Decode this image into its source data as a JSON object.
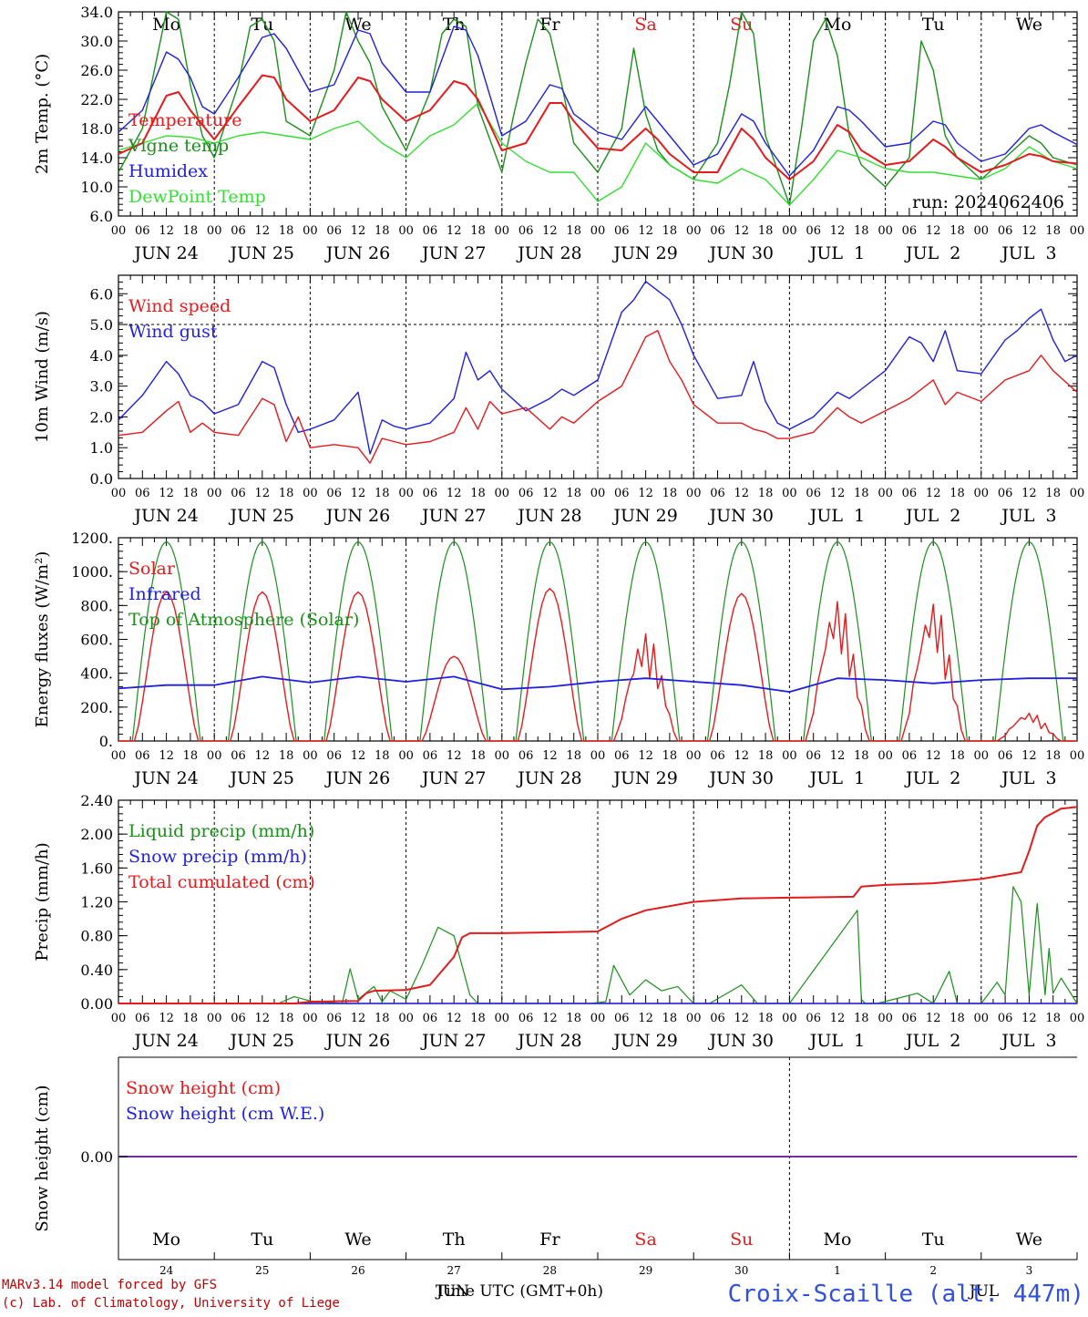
{
  "colors": {
    "red": "#e41a1c",
    "green": "#1a8f1a",
    "blue": "#1f1fe0",
    "lightgreen": "#33dd33",
    "weekend": "#e41a1c",
    "axis": "#000000",
    "purple": "#7030a0"
  },
  "weekdays": [
    {
      "label": "Mo",
      "weekend": false
    },
    {
      "label": "Tu",
      "weekend": false
    },
    {
      "label": "We",
      "weekend": false
    },
    {
      "label": "Th",
      "weekend": false
    },
    {
      "label": "Fr",
      "weekend": false
    },
    {
      "label": "Sa",
      "weekend": true
    },
    {
      "label": "Su",
      "weekend": true
    },
    {
      "label": "Mo",
      "weekend": false
    },
    {
      "label": "Tu",
      "weekend": false
    },
    {
      "label": "We",
      "weekend": false
    }
  ],
  "day_labels": [
    "JUN 24",
    "JUN 25",
    "JUN 26",
    "JUN 27",
    "JUN 28",
    "JUN 29",
    "JUN 30",
    "JUL  1",
    "JUL  2",
    "JUL  3"
  ],
  "hour_labels": [
    "00",
    "06",
    "12",
    "18"
  ],
  "day_numbers": [
    "24",
    "25",
    "26",
    "27",
    "28",
    "29",
    "30",
    "1",
    "2",
    "3"
  ],
  "bottom_month_labels": [
    "JUN",
    "JUL"
  ],
  "xlabel": "Time UTC (GMT+0h)",
  "footer": {
    "line1": "MARv3.14 model forced by GFS",
    "line2": "(c) Lab. of Climatology, University of Liege",
    "station": "Croix-Scaille (alt. 447m)"
  },
  "chart_data": [
    {
      "type": "line",
      "ylabel": "2m Temp. (°C)",
      "ylim": [
        6,
        34
      ],
      "yticks": [
        "6.0",
        "10.0",
        "14.0",
        "18.0",
        "22.0",
        "26.0",
        "30.0",
        "34.0"
      ],
      "run_label": "run: 2024062406",
      "x_unit": "hours since JUN 24 00 UTC",
      "series": [
        {
          "name": "Temperature",
          "color": "red",
          "x": [
            0,
            6,
            12,
            15,
            18,
            24,
            30,
            36,
            39,
            42,
            48,
            54,
            60,
            63,
            66,
            72,
            78,
            84,
            87,
            90,
            96,
            102,
            108,
            111,
            114,
            120,
            126,
            132,
            135,
            138,
            144,
            150,
            156,
            159,
            162,
            168,
            174,
            180,
            183,
            186,
            192,
            198,
            204,
            207,
            210,
            216,
            222,
            228,
            231,
            234,
            240
          ],
          "y": [
            14.5,
            16,
            22.5,
            23,
            20.5,
            16.5,
            21,
            25.3,
            25,
            22,
            19,
            20.5,
            25,
            24.5,
            22,
            19,
            20.5,
            24.5,
            24,
            22,
            15,
            16,
            21.5,
            21.5,
            19,
            15.3,
            15,
            18,
            16.5,
            14.5,
            12,
            12,
            18,
            16.5,
            14,
            11,
            13.5,
            18.5,
            17.5,
            15,
            13,
            13.5,
            16.5,
            15.5,
            14,
            12,
            13,
            14.5,
            14.2,
            13.5,
            13.2
          ]
        },
        {
          "name": "Vigne temp",
          "color": "green",
          "x": [
            0,
            6,
            9,
            12,
            15,
            18,
            21,
            24,
            30,
            33,
            36,
            39,
            42,
            48,
            54,
            57,
            60,
            63,
            66,
            72,
            78,
            81,
            84,
            87,
            90,
            96,
            99,
            102,
            105,
            108,
            111,
            114,
            120,
            126,
            129,
            132,
            135,
            138,
            144,
            150,
            153,
            156,
            159,
            162,
            168,
            171,
            174,
            177,
            180,
            183,
            186,
            192,
            198,
            201,
            204,
            207,
            210,
            216,
            222,
            228,
            231,
            234,
            240
          ],
          "y": [
            12,
            18,
            26,
            34,
            33,
            24,
            17,
            14,
            24,
            32,
            33,
            30,
            19,
            17,
            26,
            34,
            30,
            27,
            21,
            15,
            23,
            31,
            33,
            32,
            21,
            12,
            20,
            27,
            33,
            31,
            24,
            16,
            12,
            18,
            29,
            20,
            15,
            13,
            11,
            16,
            24,
            34,
            31,
            17,
            7.5,
            18,
            30,
            33,
            28,
            17,
            13,
            10,
            14,
            30,
            26,
            17,
            14,
            11,
            14,
            17,
            16,
            14,
            13
          ]
        },
        {
          "name": "Humidex",
          "color": "blue",
          "x": [
            0,
            6,
            12,
            15,
            18,
            21,
            24,
            30,
            36,
            39,
            42,
            48,
            54,
            60,
            63,
            66,
            72,
            78,
            84,
            87,
            90,
            96,
            102,
            108,
            111,
            114,
            120,
            126,
            132,
            135,
            138,
            144,
            150,
            156,
            159,
            162,
            168,
            174,
            180,
            183,
            186,
            192,
            198,
            204,
            207,
            210,
            216,
            222,
            228,
            231,
            234,
            240
          ],
          "y": [
            17.5,
            20.5,
            28.5,
            27.5,
            25,
            21,
            20,
            25,
            30.5,
            31,
            29,
            23,
            24,
            31.5,
            31,
            27,
            23,
            23,
            32,
            31.5,
            28,
            17,
            19,
            24,
            23.5,
            20,
            17.5,
            16.5,
            21,
            19,
            17,
            13,
            14.5,
            20,
            19,
            16,
            11.5,
            15,
            21,
            20.5,
            19,
            15.5,
            16,
            19,
            18.5,
            16,
            13.5,
            14.5,
            18,
            18.5,
            17.5,
            15.8
          ]
        },
        {
          "name": "DewPoint Temp",
          "color": "lightgreen",
          "x": [
            0,
            6,
            12,
            18,
            24,
            30,
            36,
            42,
            48,
            54,
            60,
            66,
            72,
            78,
            84,
            90,
            96,
            102,
            108,
            114,
            120,
            126,
            132,
            138,
            144,
            150,
            156,
            162,
            168,
            174,
            180,
            186,
            192,
            198,
            204,
            210,
            216,
            222,
            228,
            234,
            240
          ],
          "y": [
            15,
            16,
            17,
            16.8,
            16,
            17,
            17.5,
            17,
            16.5,
            18,
            19,
            16,
            14,
            17,
            18.5,
            21.5,
            16,
            13.5,
            12,
            12,
            8,
            10,
            16,
            13,
            11,
            10.5,
            12.5,
            11,
            7.5,
            11,
            15,
            14,
            12.5,
            12,
            12,
            11.5,
            11,
            12.5,
            15.5,
            13.5,
            12.5
          ]
        }
      ]
    },
    {
      "type": "line",
      "ylabel": "10m Wind (m/s)",
      "ylim": [
        0,
        6.6
      ],
      "yticks": [
        "0.0",
        "1.0",
        "2.0",
        "3.0",
        "4.0",
        "5.0",
        "6.0"
      ],
      "reference_line": 5.0,
      "x_unit": "hours since JUN 24 00 UTC",
      "series": [
        {
          "name": "Wind speed",
          "color": "red",
          "x": [
            0,
            6,
            12,
            15,
            18,
            21,
            24,
            30,
            36,
            39,
            42,
            45,
            48,
            54,
            60,
            63,
            66,
            69,
            72,
            78,
            84,
            87,
            90,
            93,
            96,
            102,
            108,
            111,
            114,
            120,
            126,
            132,
            135,
            138,
            141,
            144,
            150,
            156,
            159,
            162,
            165,
            168,
            174,
            180,
            183,
            186,
            192,
            198,
            204,
            207,
            210,
            216,
            222,
            228,
            231,
            234,
            240
          ],
          "y": [
            1.4,
            1.5,
            2.2,
            2.5,
            1.5,
            1.8,
            1.5,
            1.4,
            2.6,
            2.4,
            1.2,
            2.0,
            1.0,
            1.1,
            1.0,
            0.5,
            1.3,
            1.2,
            1.1,
            1.2,
            1.5,
            2.3,
            1.6,
            2.5,
            2.1,
            2.3,
            1.6,
            2.0,
            1.8,
            2.5,
            3.0,
            4.6,
            4.8,
            3.8,
            3.2,
            2.4,
            1.8,
            1.8,
            1.6,
            1.5,
            1.3,
            1.3,
            1.5,
            2.3,
            2.0,
            1.8,
            2.2,
            2.6,
            3.2,
            2.4,
            2.8,
            2.5,
            3.2,
            3.5,
            4.0,
            3.5,
            2.8
          ]
        },
        {
          "name": "Wind gust",
          "color": "blue",
          "x": [
            0,
            6,
            12,
            15,
            18,
            21,
            24,
            30,
            36,
            39,
            42,
            45,
            48,
            54,
            60,
            63,
            66,
            69,
            72,
            78,
            84,
            87,
            90,
            93,
            96,
            102,
            108,
            111,
            114,
            120,
            126,
            129,
            132,
            135,
            138,
            141,
            144,
            150,
            156,
            159,
            162,
            165,
            168,
            174,
            180,
            183,
            186,
            192,
            198,
            201,
            204,
            207,
            210,
            216,
            222,
            225,
            228,
            231,
            234,
            237,
            240
          ],
          "y": [
            1.9,
            2.7,
            3.8,
            3.4,
            2.7,
            2.5,
            2.1,
            2.4,
            3.8,
            3.6,
            2.4,
            1.5,
            1.6,
            1.9,
            2.8,
            0.8,
            1.9,
            1.7,
            1.6,
            1.8,
            2.6,
            4.1,
            3.2,
            3.5,
            2.9,
            2.2,
            2.6,
            2.9,
            2.7,
            3.2,
            5.4,
            5.8,
            6.4,
            6.1,
            5.8,
            5.0,
            4.0,
            2.6,
            2.7,
            3.8,
            2.5,
            1.8,
            1.6,
            2.0,
            2.8,
            2.6,
            2.9,
            3.5,
            4.6,
            4.4,
            3.8,
            4.8,
            3.5,
            3.4,
            4.5,
            4.8,
            5.2,
            5.5,
            4.5,
            3.8,
            4.0
          ]
        }
      ]
    },
    {
      "type": "line",
      "ylabel": "Energy fluxes (W/m²)",
      "ylim": [
        0,
        1200
      ],
      "yticks": [
        "0.",
        "200.",
        "400.",
        "600.",
        "800.",
        "1000.",
        "1200."
      ],
      "x_unit": "hours since JUN 24 00 UTC",
      "series": [
        {
          "name": "Solar",
          "color": "red",
          "clear_sky_peaks": [
            880,
            880,
            880,
            500,
            900,
            640,
            870,
            840,
            830,
            170
          ],
          "daylight_hours": [
            4,
            20
          ],
          "noon_hour": 13
        },
        {
          "name": "Infrared",
          "color": "blue",
          "x": [
            0,
            12,
            24,
            36,
            48,
            60,
            72,
            84,
            96,
            108,
            120,
            132,
            144,
            156,
            168,
            180,
            192,
            204,
            216,
            228,
            240
          ],
          "y": [
            310,
            330,
            330,
            380,
            345,
            380,
            350,
            380,
            305,
            320,
            350,
            370,
            350,
            330,
            290,
            370,
            360,
            340,
            360,
            370,
            370
          ]
        },
        {
          "name": "Top of Atmosphere (Solar)",
          "color": "green",
          "peak": 1175,
          "daylight_hours": [
            3.5,
            20.5
          ],
          "noon_hour": 12
        }
      ]
    },
    {
      "type": "line",
      "ylabel": "Precip (mm/h)",
      "ylim": [
        0,
        2.4
      ],
      "yticks": [
        "0.00",
        "0.40",
        "0.80",
        "1.20",
        "1.60",
        "2.00",
        "2.40"
      ],
      "x_unit": "hours since JUN 24 00 UTC",
      "series": [
        {
          "name": "Liquid precip (mm/h)",
          "color": "green",
          "x": [
            0,
            40,
            44,
            48,
            56,
            58,
            60,
            64,
            66,
            68,
            72,
            76,
            80,
            84,
            88,
            90,
            92,
            96,
            118,
            122,
            124,
            128,
            132,
            136,
            140,
            144,
            148,
            156,
            160,
            168,
            185,
            186,
            187,
            190,
            200,
            204,
            208,
            210,
            216,
            220,
            222,
            224,
            226,
            228,
            230,
            232,
            233,
            234,
            236,
            240
          ],
          "y": [
            0,
            0,
            0.08,
            0.03,
            0,
            0.41,
            0.05,
            0.2,
            0.02,
            0.15,
            0.05,
            0.45,
            0.9,
            0.8,
            0.1,
            0,
            0,
            0,
            0,
            0.02,
            0.45,
            0.1,
            0.28,
            0.15,
            0.2,
            0,
            0,
            0.22,
            0,
            0,
            1.1,
            0.05,
            0,
            0,
            0.12,
            0,
            0.38,
            0,
            0,
            0.25,
            0.1,
            1.38,
            1.2,
            0.1,
            1.18,
            0.1,
            0.65,
            0.12,
            0.3,
            0
          ]
        },
        {
          "name": "Snow precip (mm/h)",
          "color": "blue",
          "x": [
            0,
            240
          ],
          "y": [
            0,
            0
          ]
        },
        {
          "name": "Total cumulated (cm)",
          "color": "red",
          "x": [
            0,
            44,
            48,
            60,
            62,
            64,
            72,
            78,
            84,
            86,
            88,
            96,
            108,
            120,
            126,
            132,
            144,
            156,
            168,
            184,
            186,
            192,
            204,
            216,
            226,
            228,
            230,
            232,
            236,
            240
          ],
          "y": [
            0,
            0,
            0.02,
            0.03,
            0.12,
            0.15,
            0.16,
            0.22,
            0.55,
            0.78,
            0.83,
            0.83,
            0.84,
            0.85,
            1.0,
            1.1,
            1.2,
            1.24,
            1.25,
            1.26,
            1.38,
            1.4,
            1.42,
            1.47,
            1.55,
            1.8,
            2.1,
            2.2,
            2.3,
            2.32
          ]
        }
      ]
    },
    {
      "type": "line",
      "ylabel": "Snow height (cm)",
      "yticks": [
        "0.00"
      ],
      "series": [
        {
          "name": "Snow height (cm)",
          "color": "red",
          "value": 0
        },
        {
          "name": "Snow height (cm W.E.)",
          "color": "blue",
          "value": 0
        }
      ]
    }
  ]
}
